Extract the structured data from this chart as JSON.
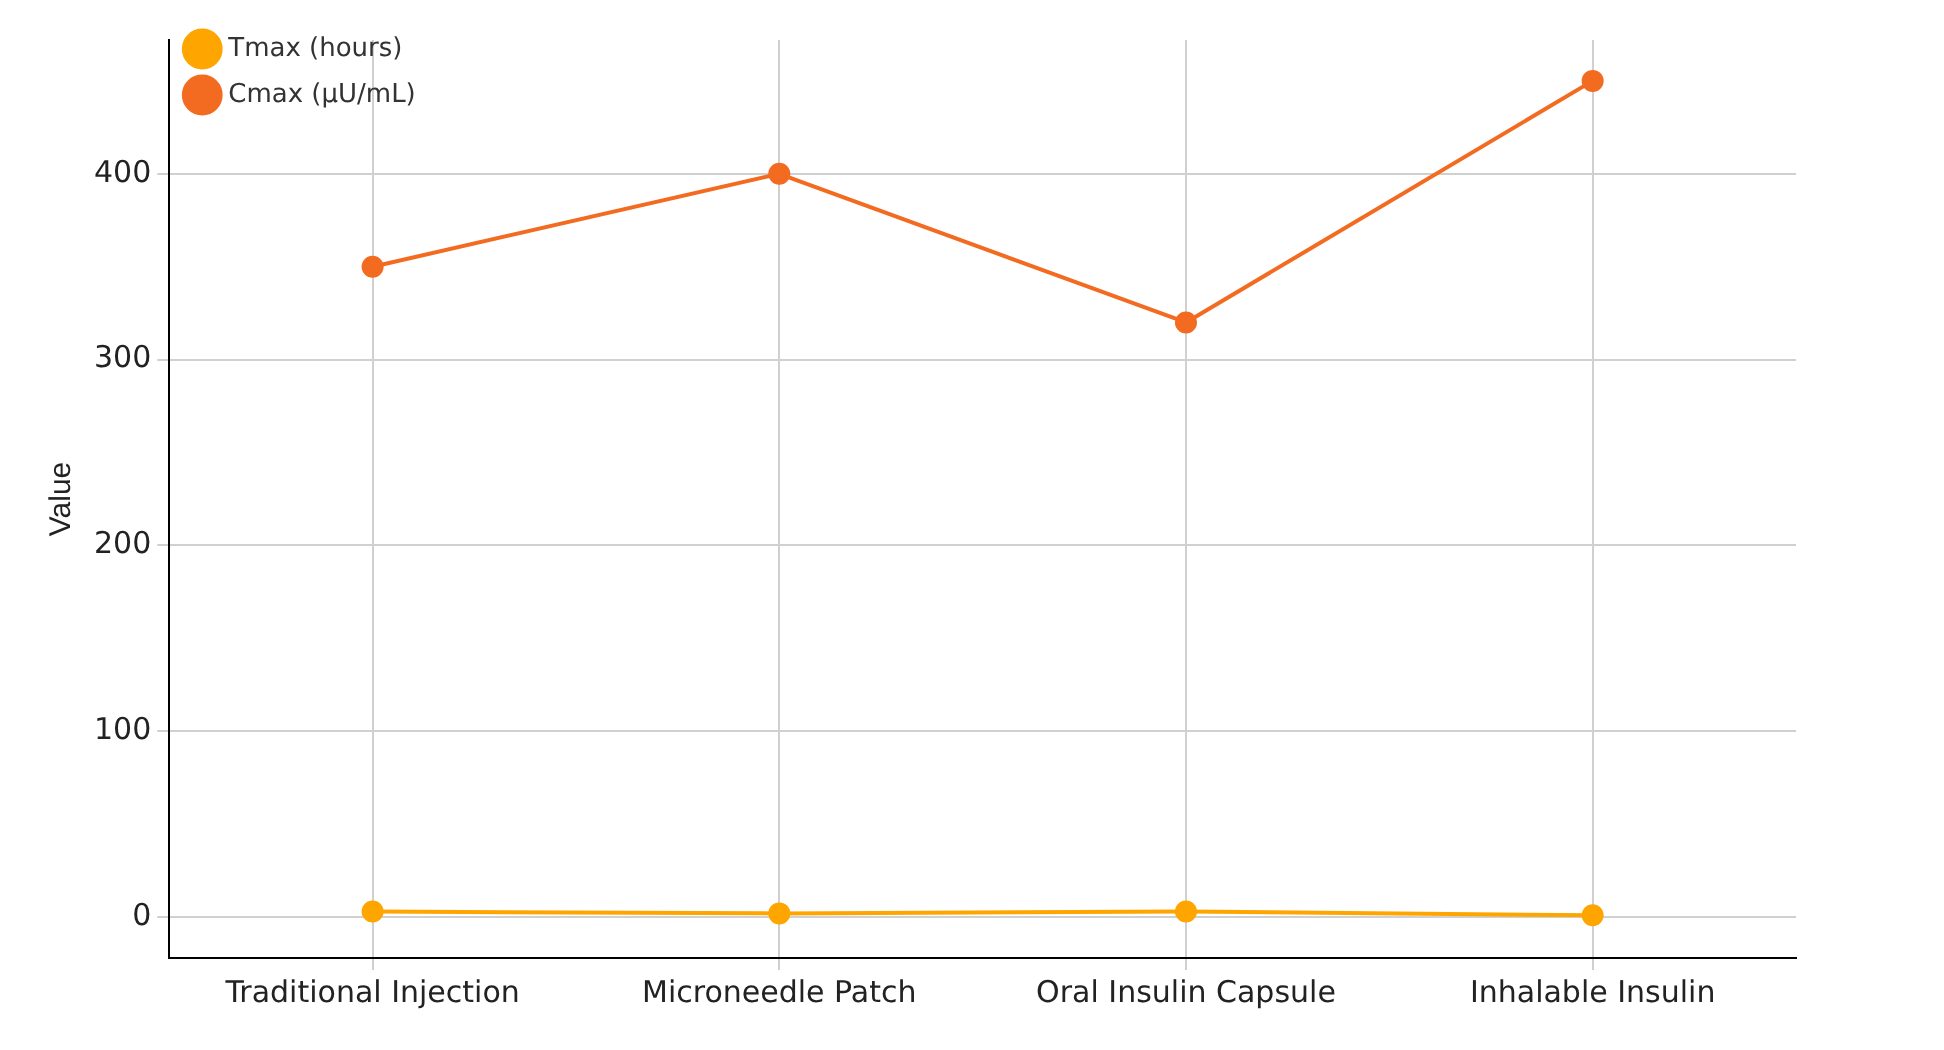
{
  "chart_data": {
    "type": "line",
    "ylabel": "Value",
    "categories": [
      "Traditional Injection",
      "Microneedle Patch",
      "Oral Insulin Capsule",
      "Inhalable Insulin"
    ],
    "series": [
      {
        "name": "Tmax (hours)",
        "color": "#ffa500",
        "values": [
          3,
          2,
          3,
          1
        ]
      },
      {
        "name": "Cmax (μU/mL)",
        "color": "#f26b21",
        "values": [
          350,
          400,
          320,
          450
        ]
      }
    ],
    "ylim": [
      -22,
      472
    ],
    "yticks": [
      0,
      100,
      200,
      300,
      400
    ],
    "grid": true,
    "legend": "top left",
    "marker": "circle",
    "line_style": "solid"
  }
}
